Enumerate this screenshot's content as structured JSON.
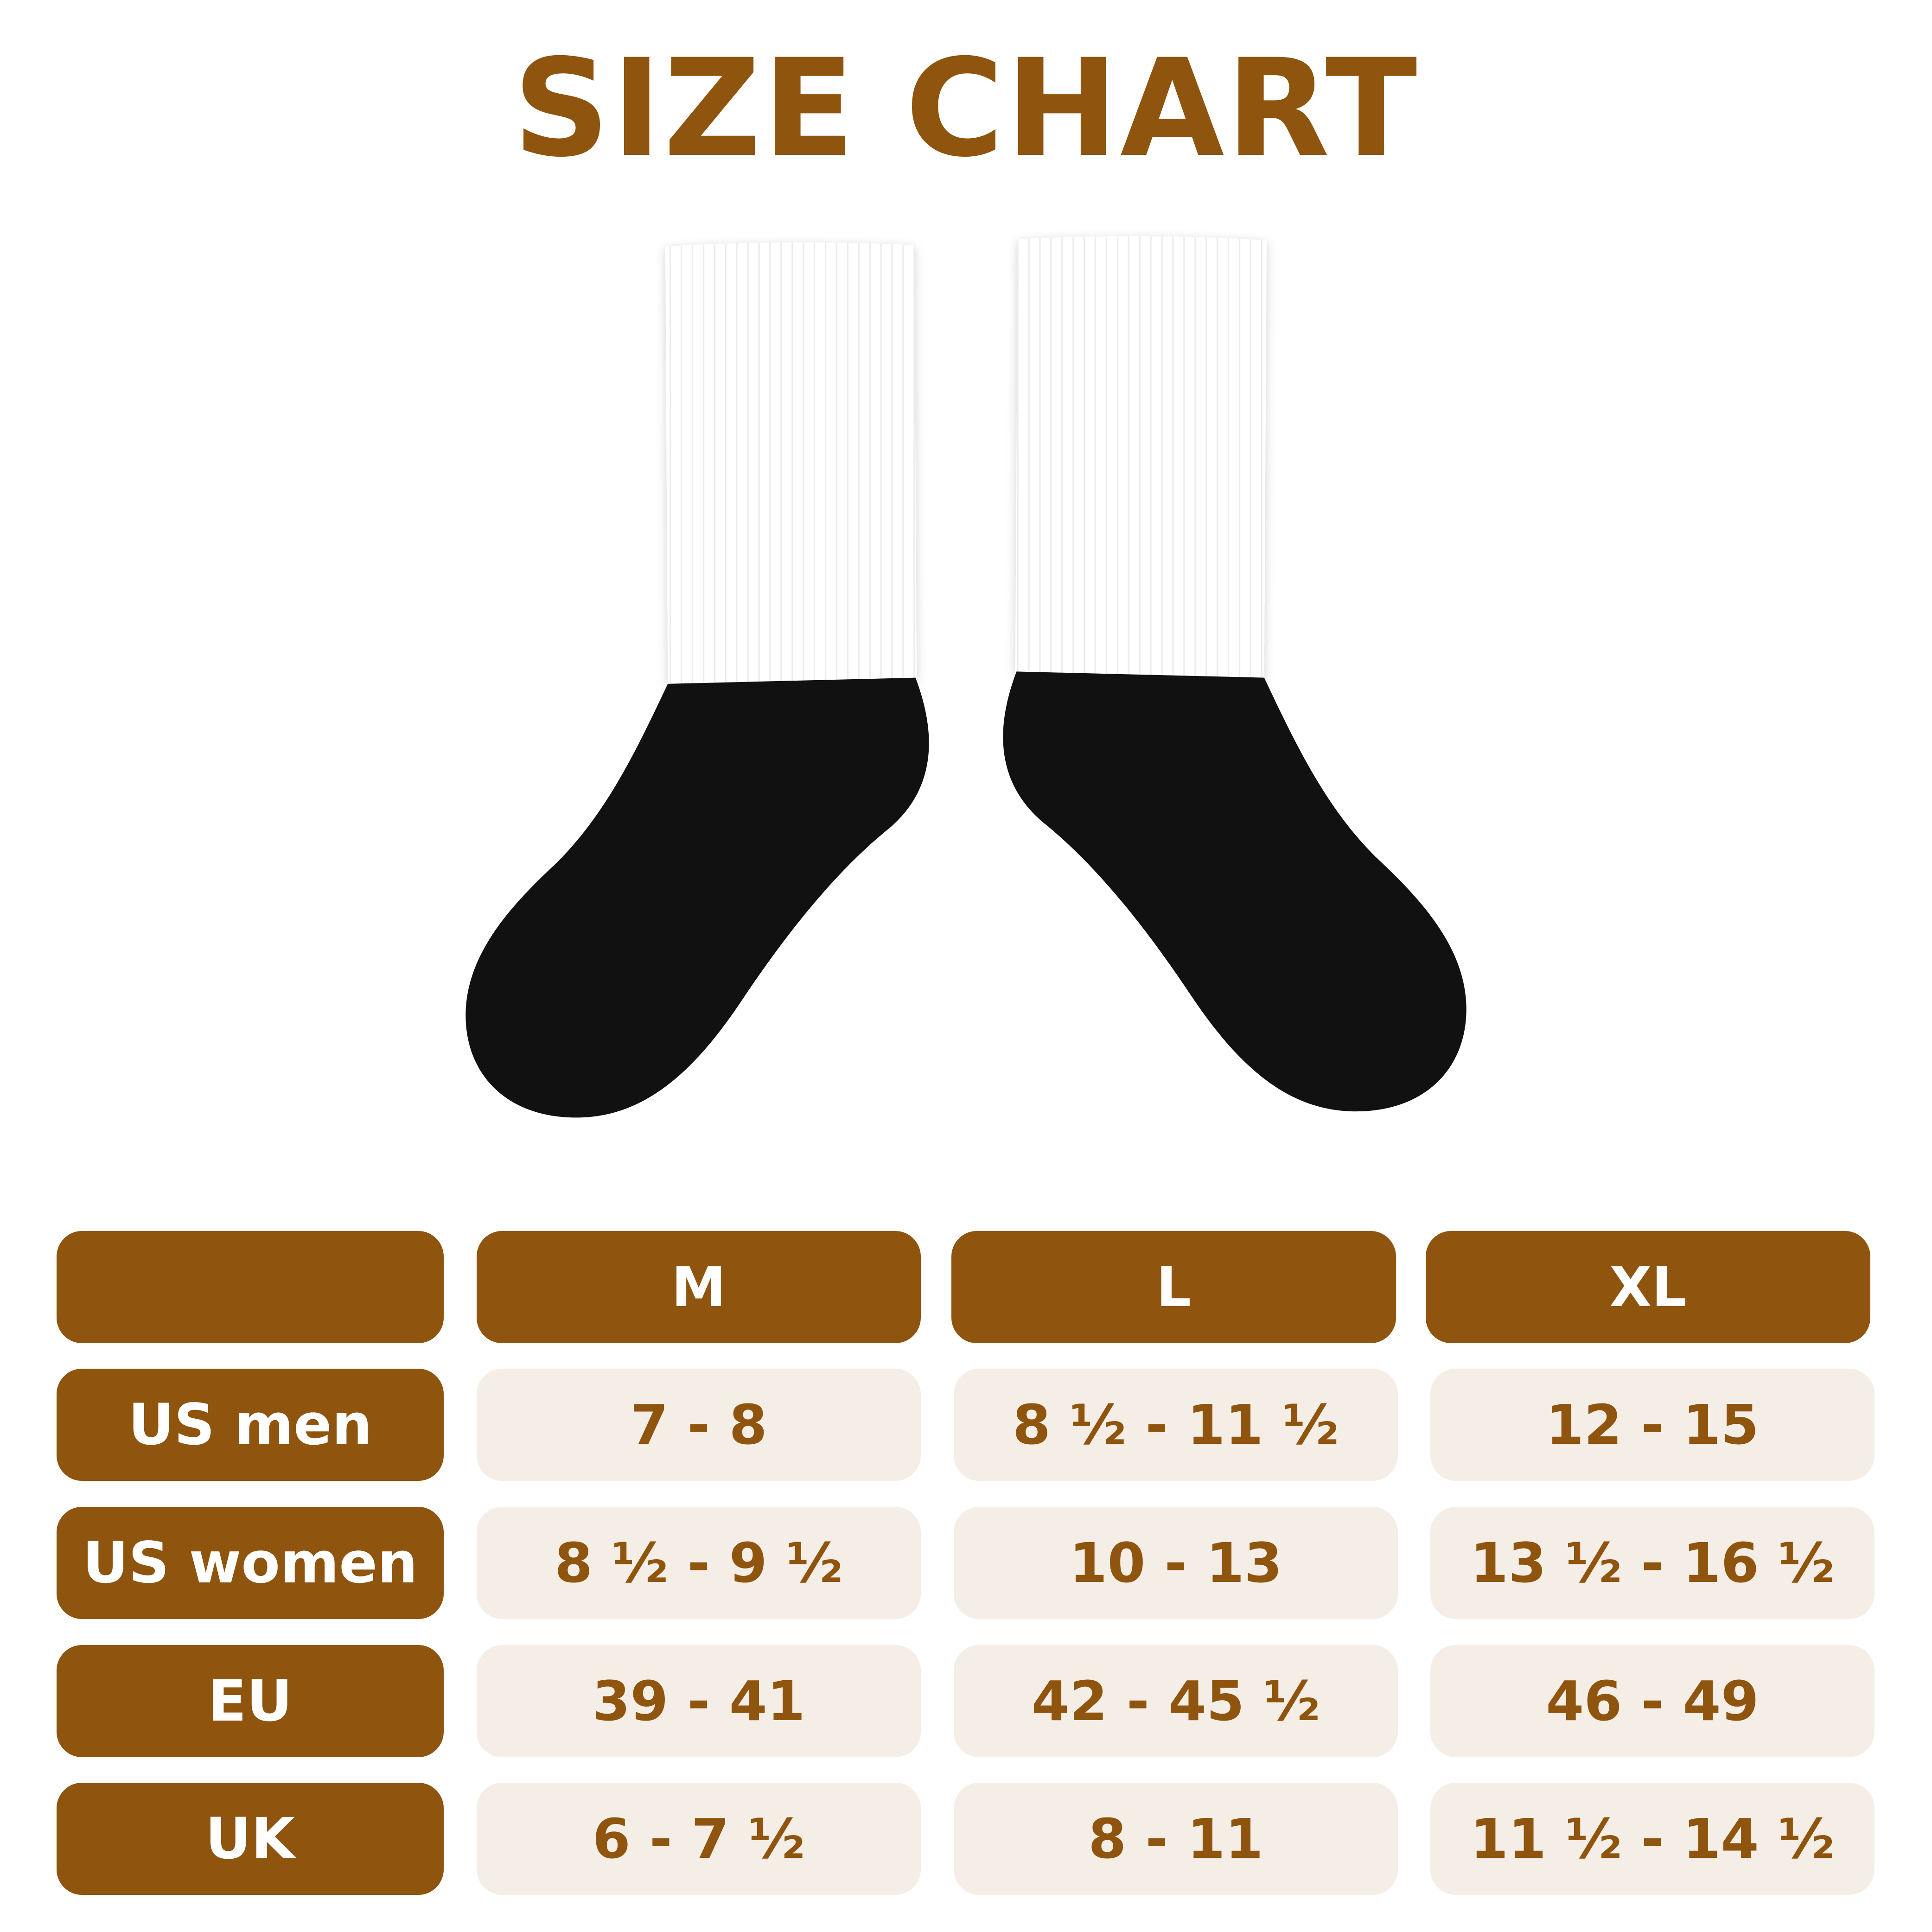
{
  "title": "SIZE CHART",
  "colors": {
    "brand": "#8f540d",
    "cell_bg": "#f5eee6",
    "sock_top": "#ffffff",
    "sock_foot": "#111111"
  },
  "image": "socks-product-icon",
  "table": {
    "corner": "",
    "columns": [
      "M",
      "L",
      "XL"
    ],
    "rows": [
      {
        "label": "US men",
        "values": [
          "7 - 8",
          "8 ½ - 11 ½",
          "12 - 15"
        ]
      },
      {
        "label": "US women",
        "values": [
          "8 ½ - 9 ½",
          "10 - 13",
          "13 ½ - 16 ½"
        ]
      },
      {
        "label": "EU",
        "values": [
          "39 - 41",
          "42 - 45 ½",
          "46 - 49"
        ]
      },
      {
        "label": "UK",
        "values": [
          "6 - 7 ½",
          "8 - 11",
          "11 ½ - 14 ½"
        ]
      }
    ]
  }
}
